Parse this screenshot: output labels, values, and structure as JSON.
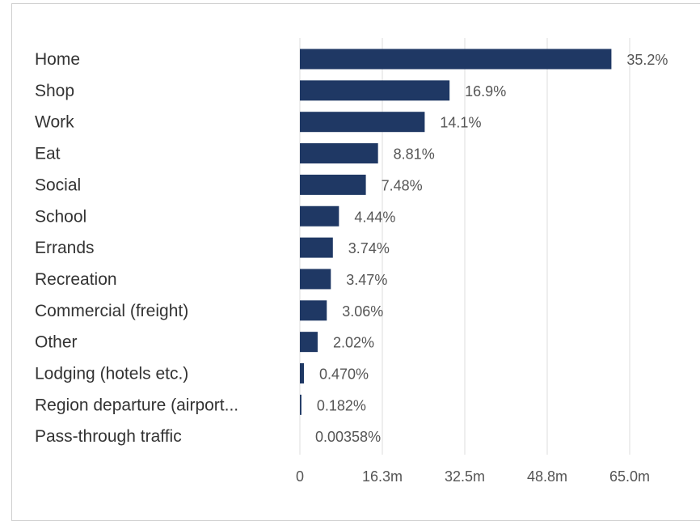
{
  "chart_data": {
    "type": "bar",
    "orientation": "horizontal",
    "categories": [
      "Home",
      "Shop",
      "Work",
      "Eat",
      "Social",
      "School",
      "Errands",
      "Recreation",
      "Commercial (freight)",
      "Other",
      "Lodging (hotels etc.)",
      "Region departure (airport...",
      "Pass-through traffic"
    ],
    "values": [
      61.4,
      29.5,
      24.6,
      15.4,
      13.0,
      7.7,
      6.5,
      6.1,
      5.3,
      3.5,
      0.8,
      0.3,
      0.006
    ],
    "value_labels": [
      "35.2%",
      "16.9%",
      "14.1%",
      "8.81%",
      "7.48%",
      "4.44%",
      "3.74%",
      "3.47%",
      "3.06%",
      "2.02%",
      "0.470%",
      "0.182%",
      "0.00358%"
    ],
    "x_ticks": [
      0,
      16.25,
      32.5,
      48.75,
      65.0
    ],
    "x_tick_labels": [
      "0",
      "16.3m",
      "32.5m",
      "48.8m",
      "65.0m"
    ],
    "xlim": [
      0,
      65.0
    ],
    "grid": true,
    "bar_color": "#1f3864"
  }
}
